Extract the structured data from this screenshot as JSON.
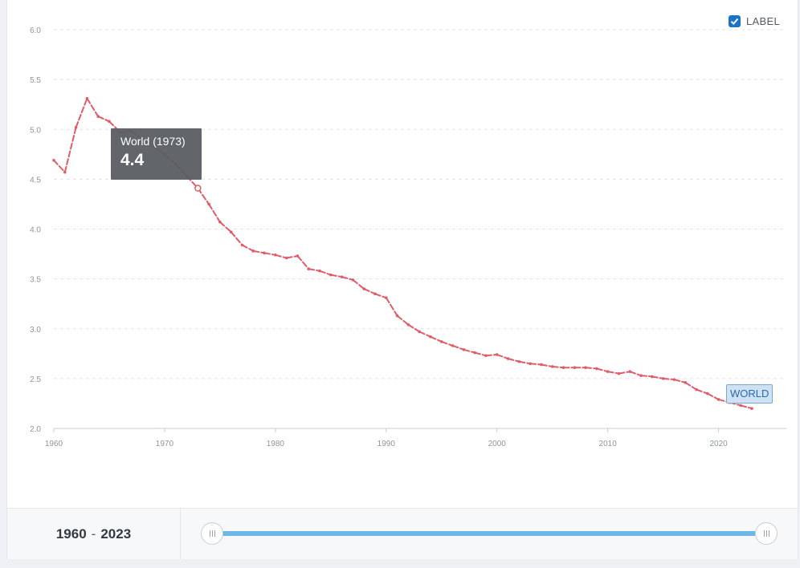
{
  "chart_data": {
    "type": "line",
    "title": "",
    "xlabel": "",
    "ylabel": "",
    "xlim": [
      1960,
      2023
    ],
    "ylim": [
      2.0,
      6.0
    ],
    "x_ticks": [
      "1960",
      "1970",
      "1980",
      "1990",
      "2000",
      "2010",
      "2020"
    ],
    "y_ticks": [
      "2.0",
      "2.5",
      "3.0",
      "3.5",
      "4.0",
      "4.5",
      "5.0",
      "5.5",
      "6.0"
    ],
    "grid": true,
    "series": [
      {
        "name": "WORLD",
        "color": "#e05c68",
        "x": [
          1960,
          1961,
          1962,
          1963,
          1964,
          1965,
          1966,
          1967,
          1968,
          1969,
          1970,
          1971,
          1972,
          1973,
          1974,
          1975,
          1976,
          1977,
          1978,
          1979,
          1980,
          1981,
          1982,
          1983,
          1984,
          1985,
          1986,
          1987,
          1988,
          1989,
          1990,
          1991,
          1992,
          1993,
          1994,
          1995,
          1996,
          1997,
          1998,
          1999,
          2000,
          2001,
          2002,
          2003,
          2004,
          2005,
          2006,
          2007,
          2008,
          2009,
          2010,
          2011,
          2012,
          2013,
          2014,
          2015,
          2016,
          2017,
          2018,
          2019,
          2020,
          2021,
          2022,
          2023
        ],
        "y": [
          4.69,
          4.57,
          5.02,
          5.31,
          5.13,
          5.08,
          4.97,
          4.98,
          4.9,
          4.83,
          4.75,
          4.65,
          4.53,
          4.41,
          4.25,
          4.07,
          3.97,
          3.84,
          3.78,
          3.76,
          3.74,
          3.71,
          3.73,
          3.6,
          3.58,
          3.54,
          3.52,
          3.49,
          3.4,
          3.35,
          3.31,
          3.13,
          3.04,
          2.97,
          2.92,
          2.87,
          2.83,
          2.79,
          2.76,
          2.73,
          2.74,
          2.7,
          2.67,
          2.65,
          2.64,
          2.62,
          2.61,
          2.61,
          2.61,
          2.6,
          2.57,
          2.55,
          2.57,
          2.53,
          2.52,
          2.5,
          2.49,
          2.46,
          2.39,
          2.35,
          2.29,
          2.26,
          2.23,
          2.2
        ]
      }
    ]
  },
  "tooltip": {
    "title": "World (1973)",
    "value": "4.4",
    "year": 1973,
    "y": 4.41
  },
  "label_toggle": {
    "label": "LABEL",
    "checked": true
  },
  "series_tag": "WORLD",
  "range": {
    "start": "1960",
    "separator": "-",
    "end": "2023"
  },
  "colors": {
    "line": "#e05c68",
    "accent": "#1a73c9",
    "slider": "#6bb8e8"
  }
}
